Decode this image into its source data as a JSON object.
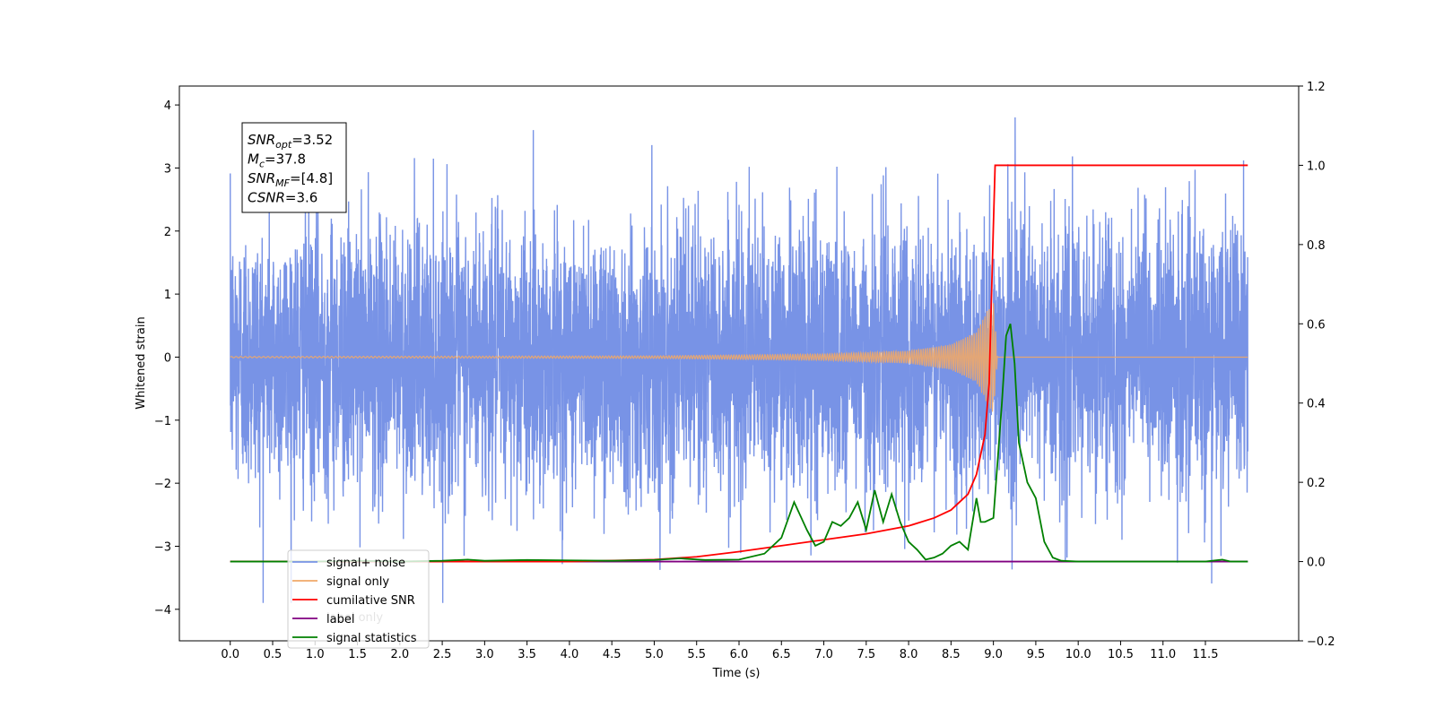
{
  "chart_data": {
    "type": "line",
    "xlabel": "Time (s)",
    "ylabel": "Whitened strain",
    "xlim": [
      -0.6,
      12.6
    ],
    "ylim_left": [
      -4.5,
      4.3
    ],
    "ylim_right": [
      -0.2,
      1.2
    ],
    "x_ticks": [
      "0.0",
      "0.5",
      "1.0",
      "1.5",
      "2.0",
      "2.5",
      "3.0",
      "3.5",
      "4.0",
      "4.5",
      "5.0",
      "5.5",
      "6.0",
      "6.5",
      "7.0",
      "7.5",
      "8.0",
      "8.5",
      "9.0",
      "9.5",
      "10.0",
      "10.5",
      "11.0",
      "11.5"
    ],
    "y_left_ticks": [
      "4",
      "3",
      "2",
      "1",
      "0",
      "−1",
      "−2",
      "−3",
      "−4"
    ],
    "y_right_ticks": [
      "1.2",
      "1.0",
      "0.8",
      "0.6",
      "0.4",
      "0.2",
      "0.0",
      "−0.2"
    ],
    "legend": {
      "placement": "lower-left",
      "entries": [
        "signal+ noise",
        "signal only",
        "cumilative SNR",
        "label",
        "signal statistics"
      ],
      "overlapped_text": "label only"
    },
    "annotation": {
      "lines": [
        {
          "sym": "SNR",
          "sub": "opt",
          "value": "=3.52"
        },
        {
          "sym": "M",
          "sub": "c",
          "value": "=37.8"
        },
        {
          "sym": "SNR",
          "sub": "MF",
          "value": "=[4.8]"
        },
        {
          "sym": "CSNR",
          "sub": "",
          "value": "=3.6"
        }
      ]
    },
    "series": [
      {
        "name": "signal+ noise",
        "axis": "left",
        "color": "#7893e6",
        "description": "whitened noise spanning roughly -3.5 to 3.9 over 0 to 12 s",
        "x_range": [
          0,
          12
        ],
        "amplitude_range": [
          -3.9,
          3.95
        ]
      },
      {
        "name": "signal only",
        "axis": "left",
        "color": "#f0a868",
        "description": "chirp growing to peak near 9.0 s then ending",
        "envelope": {
          "x": [
            0,
            5,
            7,
            8,
            8.5,
            8.8,
            8.95,
            9.0,
            9.05,
            12
          ],
          "amp": [
            0.01,
            0.02,
            0.05,
            0.1,
            0.2,
            0.4,
            0.8,
            0.9,
            0,
            0
          ]
        }
      },
      {
        "name": "cumilative SNR",
        "axis": "right",
        "color": "#ff0000",
        "x": [
          0,
          1,
          2,
          3,
          4,
          5,
          5.5,
          6,
          6.5,
          7,
          7.5,
          8,
          8.3,
          8.5,
          8.7,
          8.8,
          8.9,
          8.95,
          9.0,
          9.02,
          12
        ],
        "y": [
          0,
          0,
          0,
          0,
          0,
          0.005,
          0.012,
          0.025,
          0.04,
          0.055,
          0.07,
          0.09,
          0.11,
          0.13,
          0.17,
          0.22,
          0.32,
          0.45,
          0.85,
          1.0,
          1.0
        ]
      },
      {
        "name": "label",
        "axis": "right",
        "color": "#800080",
        "x": [
          0,
          12
        ],
        "y": [
          0,
          0
        ]
      },
      {
        "name": "signal statistics",
        "axis": "right",
        "color": "#008000",
        "x": [
          0,
          0.5,
          1,
          1.5,
          2,
          2.5,
          2.8,
          3,
          3.5,
          4,
          4.5,
          5,
          5.3,
          5.6,
          6,
          6.3,
          6.5,
          6.65,
          6.8,
          6.9,
          7.0,
          7.1,
          7.2,
          7.3,
          7.4,
          7.5,
          7.6,
          7.7,
          7.8,
          7.9,
          8.0,
          8.1,
          8.2,
          8.3,
          8.4,
          8.5,
          8.6,
          8.7,
          8.8,
          8.85,
          8.9,
          9.0,
          9.1,
          9.15,
          9.2,
          9.25,
          9.3,
          9.4,
          9.5,
          9.6,
          9.7,
          9.8,
          10,
          10.5,
          11,
          11.5,
          11.7,
          11.8,
          12
        ],
        "y": [
          0,
          0,
          0,
          0.002,
          0,
          0.002,
          0.005,
          0.002,
          0.004,
          0.003,
          0.002,
          0.004,
          0.008,
          0.004,
          0.005,
          0.02,
          0.06,
          0.15,
          0.08,
          0.04,
          0.05,
          0.1,
          0.09,
          0.11,
          0.15,
          0.08,
          0.18,
          0.1,
          0.17,
          0.1,
          0.05,
          0.03,
          0.005,
          0.01,
          0.02,
          0.04,
          0.05,
          0.03,
          0.16,
          0.1,
          0.1,
          0.11,
          0.4,
          0.57,
          0.6,
          0.5,
          0.3,
          0.2,
          0.16,
          0.05,
          0.01,
          0.002,
          0,
          0,
          0,
          0,
          0.005,
          0,
          0
        ]
      }
    ]
  }
}
